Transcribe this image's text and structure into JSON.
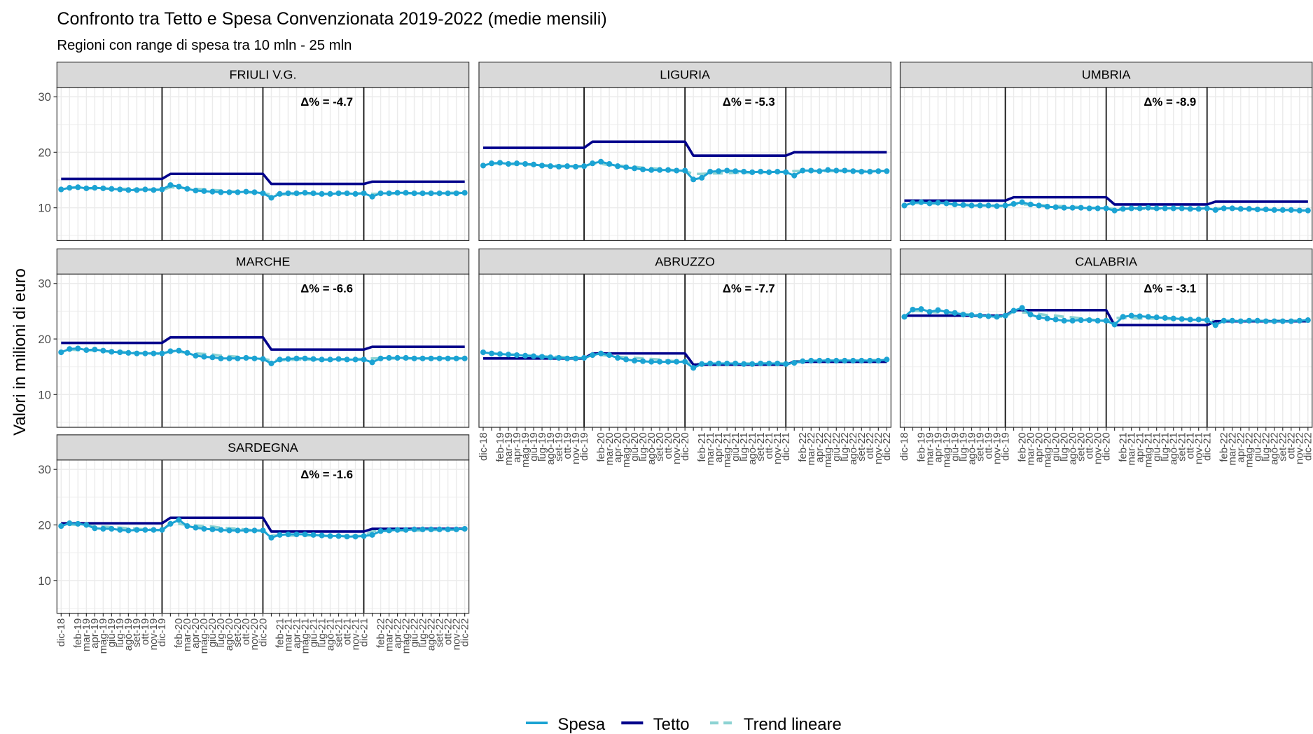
{
  "title": "Confronto tra Tetto e Spesa Convenzionata 2019-2022 (medie mensili)",
  "subtitle": "Regioni con range di spesa tra 10 mln - 25 mln",
  "y_label": "Valori in milioni di euro",
  "categories": [
    "dic-18",
    null,
    "feb-19",
    "mar-19",
    "apr-19",
    "mag-19",
    "giu-19",
    "lug-19",
    "ago-19",
    "set-19",
    "ott-19",
    "nov-19",
    "dic-19",
    null,
    "feb-20",
    "mar-20",
    "apr-20",
    "mag-20",
    "giu-20",
    "lug-20",
    "ago-20",
    "set-20",
    "ott-20",
    "nov-20",
    "dic-20",
    null,
    "feb-21",
    "mar-21",
    "apr-21",
    "mag-21",
    "giu-21",
    "lug-21",
    "ago-21",
    "set-21",
    "ott-21",
    "nov-21",
    "dic-21",
    null,
    "feb-22",
    "mar-22",
    "apr-22",
    "mag-22",
    "giu-22",
    "lug-22",
    "ago-22",
    "set-22",
    "ott-22",
    "nov-22",
    "dic-22"
  ],
  "ylim": [
    4.1,
    31.7
  ],
  "yticks": [
    10,
    20,
    30
  ],
  "grid": true,
  "series": [
    {
      "name": "Spesa",
      "color": "#1ba3d3"
    },
    {
      "name": "Tetto",
      "color": "#00008b"
    },
    {
      "name": "Trend lineare",
      "color": "#8dd3d3"
    }
  ],
  "chart_data": [
    {
      "type": "line",
      "title": "FRIULI V.G.",
      "annotation": "Δ% = -4.7",
      "values": [
        [
          13.3,
          13.6,
          13.7,
          13.5,
          13.6,
          13.5,
          13.4,
          13.3,
          13.2,
          13.2,
          13.3,
          13.2,
          13.3,
          14.1,
          13.8,
          13.4,
          13.1,
          13.0,
          12.9,
          12.8,
          12.8,
          12.8,
          12.9,
          12.8,
          12.6,
          11.8,
          12.5,
          12.6,
          12.6,
          12.7,
          12.6,
          12.5,
          12.5,
          12.6,
          12.6,
          12.5,
          12.6,
          12.0,
          12.6,
          12.6,
          12.7,
          12.7,
          12.6,
          12.6,
          12.6,
          12.6,
          12.6,
          12.6,
          12.7
        ],
        [
          15.2,
          15.2,
          15.2,
          15.2,
          15.2,
          15.2,
          15.2,
          15.2,
          15.2,
          15.2,
          15.2,
          15.2,
          15.2,
          16.1,
          16.1,
          16.1,
          16.1,
          16.1,
          16.1,
          16.1,
          16.1,
          16.1,
          16.1,
          16.1,
          16.1,
          14.3,
          14.3,
          14.3,
          14.3,
          14.3,
          14.3,
          14.3,
          14.3,
          14.3,
          14.3,
          14.3,
          14.3,
          14.7,
          14.7,
          14.7,
          14.7,
          14.7,
          14.7,
          14.7,
          14.7,
          14.7,
          14.7,
          14.7,
          14.7
        ],
        [
          null,
          13.6,
          13.6,
          13.5,
          13.5,
          13.5,
          13.4,
          13.4,
          13.4,
          13.3,
          13.3,
          13.3,
          13.2,
          13.7,
          13.6,
          13.5,
          13.4,
          13.3,
          13.2,
          13.1,
          13.0,
          12.9,
          12.8,
          12.7,
          12.6,
          12.4,
          12.4,
          12.4,
          12.5,
          12.5,
          12.5,
          12.5,
          12.5,
          12.6,
          12.6,
          12.6,
          12.6,
          12.5,
          12.5,
          12.5,
          12.6,
          12.6,
          12.6,
          12.6,
          12.6,
          12.6,
          12.7,
          12.7,
          12.7
        ]
      ]
    },
    {
      "type": "line",
      "title": "LIGURIA",
      "annotation": "Δ% = -5.3",
      "values": [
        [
          17.6,
          18.0,
          18.1,
          17.9,
          18.0,
          17.9,
          17.8,
          17.6,
          17.5,
          17.4,
          17.5,
          17.4,
          17.5,
          18.0,
          18.3,
          17.9,
          17.5,
          17.3,
          17.1,
          16.9,
          16.8,
          16.8,
          16.8,
          16.7,
          16.7,
          15.1,
          15.4,
          16.5,
          16.6,
          16.7,
          16.6,
          16.5,
          16.4,
          16.5,
          16.4,
          16.5,
          16.4,
          15.8,
          16.7,
          16.7,
          16.6,
          16.8,
          16.7,
          16.7,
          16.6,
          16.5,
          16.5,
          16.6,
          16.6
        ],
        [
          20.8,
          20.8,
          20.8,
          20.8,
          20.8,
          20.8,
          20.8,
          20.8,
          20.8,
          20.8,
          20.8,
          20.8,
          20.8,
          21.9,
          21.9,
          21.9,
          21.9,
          21.9,
          21.9,
          21.9,
          21.9,
          21.9,
          21.9,
          21.9,
          21.9,
          19.4,
          19.4,
          19.4,
          19.4,
          19.4,
          19.4,
          19.4,
          19.4,
          19.4,
          19.4,
          19.4,
          19.4,
          20.0,
          20.0,
          20.0,
          20.0,
          20.0,
          20.0,
          20.0,
          20.0,
          20.0,
          20.0,
          20.0,
          20.0
        ],
        [
          null,
          18.0,
          17.9,
          17.9,
          17.8,
          17.8,
          17.7,
          17.7,
          17.6,
          17.6,
          17.5,
          17.5,
          17.4,
          18.0,
          17.9,
          17.7,
          17.6,
          17.5,
          17.4,
          17.2,
          17.1,
          17.0,
          16.9,
          16.7,
          16.6,
          16.1,
          16.1,
          16.2,
          16.2,
          16.2,
          16.3,
          16.3,
          16.3,
          16.4,
          16.4,
          16.4,
          16.5,
          16.6,
          16.6,
          16.6,
          16.6,
          16.6,
          16.6,
          16.6,
          16.6,
          16.6,
          16.6,
          16.6,
          16.6
        ]
      ]
    },
    {
      "type": "line",
      "title": "UMBRIA",
      "annotation": "Δ% = -8.9",
      "values": [
        [
          10.4,
          10.9,
          11.0,
          10.8,
          10.9,
          10.8,
          10.6,
          10.5,
          10.4,
          10.4,
          10.4,
          10.3,
          10.4,
          10.7,
          11.0,
          10.6,
          10.4,
          10.2,
          10.1,
          10.0,
          10.0,
          10.0,
          9.9,
          9.9,
          9.9,
          9.5,
          9.8,
          9.9,
          9.9,
          10.0,
          9.9,
          9.9,
          9.9,
          9.9,
          9.8,
          9.8,
          9.9,
          9.6,
          9.9,
          9.9,
          9.8,
          9.8,
          9.7,
          9.7,
          9.6,
          9.6,
          9.6,
          9.5,
          9.5
        ],
        [
          11.3,
          11.3,
          11.3,
          11.3,
          11.3,
          11.3,
          11.3,
          11.3,
          11.3,
          11.3,
          11.3,
          11.3,
          11.3,
          11.9,
          11.9,
          11.9,
          11.9,
          11.9,
          11.9,
          11.9,
          11.9,
          11.9,
          11.9,
          11.9,
          11.9,
          10.6,
          10.6,
          10.6,
          10.6,
          10.6,
          10.6,
          10.6,
          10.6,
          10.6,
          10.6,
          10.6,
          10.6,
          11.1,
          11.1,
          11.1,
          11.1,
          11.1,
          11.1,
          11.1,
          11.1,
          11.1,
          11.1,
          11.1,
          11.1
        ],
        [
          null,
          10.9,
          10.8,
          10.8,
          10.7,
          10.7,
          10.6,
          10.6,
          10.5,
          10.5,
          10.4,
          10.4,
          10.3,
          10.7,
          10.6,
          10.6,
          10.5,
          10.4,
          10.3,
          10.3,
          10.2,
          10.1,
          10.0,
          10.0,
          9.9,
          9.8,
          9.8,
          9.8,
          9.8,
          9.8,
          9.8,
          9.9,
          9.9,
          9.9,
          9.9,
          9.9,
          9.9,
          9.9,
          9.9,
          9.8,
          9.8,
          9.8,
          9.7,
          9.7,
          9.6,
          9.6,
          9.6,
          9.5,
          9.5
        ]
      ]
    },
    {
      "type": "line",
      "title": "MARCHE",
      "annotation": "Δ% = -6.6",
      "values": [
        [
          17.6,
          18.2,
          18.3,
          18.0,
          18.1,
          17.9,
          17.7,
          17.6,
          17.5,
          17.4,
          17.4,
          17.4,
          17.4,
          17.8,
          17.9,
          17.5,
          17.0,
          16.8,
          16.7,
          16.5,
          16.5,
          16.5,
          16.6,
          16.5,
          16.4,
          15.6,
          16.3,
          16.4,
          16.5,
          16.5,
          16.4,
          16.3,
          16.3,
          16.4,
          16.3,
          16.3,
          16.3,
          15.8,
          16.5,
          16.6,
          16.6,
          16.6,
          16.5,
          16.5,
          16.5,
          16.5,
          16.5,
          16.5,
          16.5
        ],
        [
          19.3,
          19.3,
          19.3,
          19.3,
          19.3,
          19.3,
          19.3,
          19.3,
          19.3,
          19.3,
          19.3,
          19.3,
          19.3,
          20.3,
          20.3,
          20.3,
          20.3,
          20.3,
          20.3,
          20.3,
          20.3,
          20.3,
          20.3,
          20.3,
          20.3,
          18.1,
          18.1,
          18.1,
          18.1,
          18.1,
          18.1,
          18.1,
          18.1,
          18.1,
          18.1,
          18.1,
          18.1,
          18.6,
          18.6,
          18.6,
          18.6,
          18.6,
          18.6,
          18.6,
          18.6,
          18.6,
          18.6,
          18.6,
          18.6
        ],
        [
          null,
          18.1,
          18.0,
          18.0,
          17.9,
          17.8,
          17.7,
          17.7,
          17.6,
          17.5,
          17.4,
          17.4,
          17.3,
          17.8,
          17.7,
          17.5,
          17.4,
          17.3,
          17.2,
          17.0,
          16.9,
          16.8,
          16.7,
          16.5,
          16.4,
          16.2,
          16.2,
          16.2,
          16.3,
          16.3,
          16.3,
          16.3,
          16.3,
          16.3,
          16.4,
          16.4,
          16.4,
          16.5,
          16.5,
          16.5,
          16.5,
          16.5,
          16.5,
          16.5,
          16.5,
          16.5,
          16.5,
          16.5,
          16.5
        ]
      ]
    },
    {
      "type": "line",
      "title": "ABRUZZO",
      "annotation": "Δ% = -7.7",
      "values": [
        [
          17.6,
          17.4,
          17.3,
          17.2,
          17.1,
          17.0,
          16.9,
          16.8,
          16.7,
          16.6,
          16.5,
          16.5,
          16.6,
          17.1,
          17.4,
          17.1,
          16.6,
          16.3,
          16.1,
          16.0,
          15.9,
          15.9,
          15.9,
          15.9,
          15.9,
          14.8,
          15.5,
          15.6,
          15.6,
          15.6,
          15.6,
          15.5,
          15.5,
          15.6,
          15.6,
          15.6,
          15.5,
          15.7,
          16.0,
          16.1,
          16.1,
          16.1,
          16.1,
          16.1,
          16.1,
          16.1,
          16.1,
          16.1,
          16.3
        ],
        [
          16.5,
          16.5,
          16.5,
          16.5,
          16.5,
          16.5,
          16.5,
          16.5,
          16.5,
          16.5,
          16.5,
          16.5,
          16.5,
          17.4,
          17.4,
          17.4,
          17.4,
          17.4,
          17.4,
          17.4,
          17.4,
          17.4,
          17.4,
          17.4,
          17.4,
          15.4,
          15.4,
          15.4,
          15.4,
          15.4,
          15.4,
          15.4,
          15.4,
          15.4,
          15.4,
          15.4,
          15.4,
          15.9,
          15.9,
          15.9,
          15.9,
          15.9,
          15.9,
          15.9,
          15.9,
          15.9,
          15.9,
          15.9,
          15.9
        ],
        [
          null,
          17.4,
          17.3,
          17.2,
          17.2,
          17.1,
          17.0,
          16.9,
          16.8,
          16.8,
          16.7,
          16.6,
          16.5,
          17.2,
          17.1,
          17.0,
          16.8,
          16.7,
          16.6,
          16.5,
          16.4,
          16.3,
          16.1,
          16.0,
          15.9,
          15.5,
          15.5,
          15.5,
          15.5,
          15.5,
          15.5,
          15.6,
          15.6,
          15.6,
          15.6,
          15.6,
          15.6,
          16.0,
          16.0,
          16.0,
          16.1,
          16.1,
          16.1,
          16.1,
          16.1,
          16.1,
          16.2,
          16.2,
          16.2
        ]
      ]
    },
    {
      "type": "line",
      "title": "CALABRIA",
      "annotation": "Δ% = -3.1",
      "values": [
        [
          24.0,
          25.3,
          25.4,
          24.9,
          25.2,
          24.9,
          24.7,
          24.4,
          24.3,
          24.2,
          24.1,
          24.0,
          24.2,
          25.1,
          25.6,
          24.4,
          23.9,
          23.7,
          23.5,
          23.3,
          23.3,
          23.4,
          23.4,
          23.3,
          23.3,
          22.6,
          24.0,
          24.2,
          24.1,
          24.0,
          23.9,
          23.8,
          23.7,
          23.6,
          23.5,
          23.5,
          23.4,
          22.5,
          23.3,
          23.3,
          23.2,
          23.3,
          23.3,
          23.2,
          23.2,
          23.2,
          23.2,
          23.3,
          23.4
        ],
        [
          24.2,
          24.2,
          24.2,
          24.2,
          24.2,
          24.2,
          24.2,
          24.2,
          24.2,
          24.2,
          24.2,
          24.2,
          24.2,
          25.2,
          25.2,
          25.2,
          25.2,
          25.2,
          25.2,
          25.2,
          25.2,
          25.2,
          25.2,
          25.2,
          25.2,
          22.5,
          22.5,
          22.5,
          22.5,
          22.5,
          22.5,
          22.5,
          22.5,
          22.5,
          22.5,
          22.5,
          22.5,
          23.2,
          23.2,
          23.2,
          23.2,
          23.2,
          23.2,
          23.2,
          23.2,
          23.2,
          23.2,
          23.2,
          23.2
        ],
        [
          null,
          25.1,
          25.0,
          24.9,
          24.8,
          24.7,
          24.6,
          24.5,
          24.4,
          24.3,
          24.2,
          24.1,
          24.0,
          25.0,
          24.8,
          24.7,
          24.5,
          24.3,
          24.2,
          24.0,
          23.9,
          23.7,
          23.5,
          23.4,
          23.2,
          23.8,
          23.8,
          23.7,
          23.7,
          23.7,
          23.7,
          23.6,
          23.6,
          23.6,
          23.6,
          23.5,
          23.5,
          23.2,
          23.2,
          23.2,
          23.2,
          23.2,
          23.2,
          23.3,
          23.3,
          23.3,
          23.3,
          23.3,
          23.3
        ]
      ]
    },
    {
      "type": "line",
      "title": "SARDEGNA",
      "annotation": "Δ% = -1.6",
      "values": [
        [
          19.8,
          20.3,
          20.2,
          20.0,
          19.4,
          19.3,
          19.3,
          19.1,
          19.0,
          19.1,
          19.1,
          19.1,
          19.1,
          20.2,
          20.9,
          19.8,
          19.5,
          19.3,
          19.2,
          19.1,
          19.0,
          19.0,
          19.0,
          19.0,
          19.0,
          17.7,
          18.2,
          18.3,
          18.3,
          18.3,
          18.2,
          18.1,
          18.0,
          18.0,
          17.9,
          17.9,
          18.0,
          18.2,
          18.9,
          19.0,
          19.1,
          19.1,
          19.2,
          19.2,
          19.2,
          19.2,
          19.2,
          19.2,
          19.3
        ],
        [
          20.3,
          20.3,
          20.3,
          20.3,
          20.3,
          20.3,
          20.3,
          20.3,
          20.3,
          20.3,
          20.3,
          20.3,
          20.3,
          21.3,
          21.3,
          21.3,
          21.3,
          21.3,
          21.3,
          21.3,
          21.3,
          21.3,
          21.3,
          21.3,
          21.3,
          18.8,
          18.8,
          18.8,
          18.8,
          18.8,
          18.8,
          18.8,
          18.8,
          18.8,
          18.8,
          18.8,
          18.8,
          19.3,
          19.3,
          19.3,
          19.3,
          19.3,
          19.3,
          19.3,
          19.3,
          19.3,
          19.3,
          19.3,
          19.3
        ],
        [
          null,
          20.1,
          20.0,
          19.9,
          19.8,
          19.7,
          19.6,
          19.5,
          19.4,
          19.3,
          19.2,
          19.1,
          19.0,
          20.3,
          20.2,
          20.0,
          19.9,
          19.8,
          19.7,
          19.5,
          19.4,
          19.3,
          19.2,
          19.0,
          18.9,
          18.1,
          18.1,
          18.1,
          18.1,
          18.1,
          18.1,
          18.0,
          18.0,
          18.0,
          18.0,
          18.0,
          18.0,
          18.9,
          18.9,
          18.9,
          19.0,
          19.0,
          19.0,
          19.0,
          19.1,
          19.1,
          19.1,
          19.2,
          19.2
        ]
      ]
    }
  ]
}
